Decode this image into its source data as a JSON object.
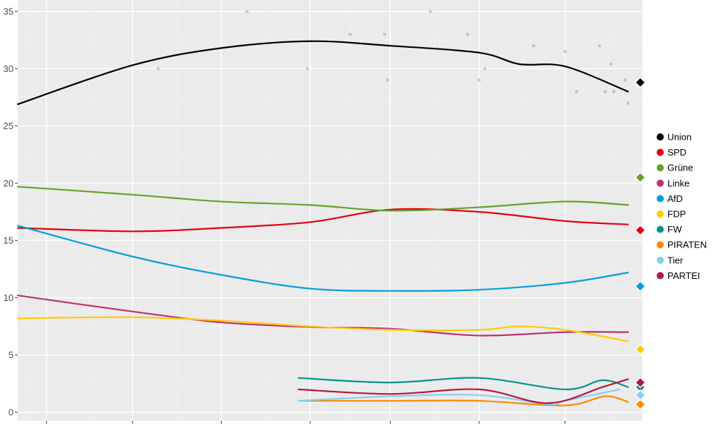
{
  "chart_data": {
    "type": "line",
    "title": "",
    "xlabel": "",
    "ylabel": "",
    "xlim": [
      "2018-10-22",
      "2019-05-28"
    ],
    "ylim": [
      0,
      36.5
    ],
    "grid": true,
    "legend_position": "right",
    "x_ticks": [
      "2018-11-01",
      "2018-12-01",
      "2019-01-01",
      "2019-02-01",
      "2019-03-01",
      "2019-04-01",
      "2019-05-01"
    ],
    "y_ticks": [
      "0",
      "5",
      "10",
      "15",
      "20",
      "25",
      "30",
      "35"
    ],
    "series": [
      {
        "name": "Union",
        "color": "#000000",
        "diamond": 28.8,
        "points": [
          [
            "2018-10-22",
            26.9
          ],
          [
            "2018-12-01",
            30.3
          ],
          [
            "2019-01-01",
            31.8
          ],
          [
            "2019-02-01",
            32.4
          ],
          [
            "2019-03-01",
            32.0
          ],
          [
            "2019-04-01",
            31.4
          ],
          [
            "2019-04-15",
            30.4
          ],
          [
            "2019-05-01",
            30.2
          ],
          [
            "2019-05-23",
            28.0
          ]
        ],
        "polls": [
          [
            "2018-12-10",
            30
          ],
          [
            "2019-01-10",
            35
          ],
          [
            "2019-01-31",
            30
          ],
          [
            "2019-02-15",
            33
          ],
          [
            "2019-02-27",
            33
          ],
          [
            "2019-02-28",
            29
          ],
          [
            "2019-03-15",
            35
          ],
          [
            "2019-03-28",
            33
          ],
          [
            "2019-04-01",
            29
          ],
          [
            "2019-04-03",
            30
          ],
          [
            "2019-04-20",
            32
          ],
          [
            "2019-05-01",
            31.5
          ],
          [
            "2019-05-05",
            28
          ],
          [
            "2019-05-13",
            32
          ],
          [
            "2019-05-15",
            28
          ],
          [
            "2019-05-17",
            30.4
          ],
          [
            "2019-05-18",
            28
          ],
          [
            "2019-05-22",
            29
          ],
          [
            "2019-05-23",
            27
          ]
        ]
      },
      {
        "name": "SPD",
        "color": "#e3000f",
        "diamond": 15.9,
        "points": [
          [
            "2018-10-22",
            16.1
          ],
          [
            "2018-12-01",
            15.8
          ],
          [
            "2019-01-01",
            16.1
          ],
          [
            "2019-02-01",
            16.6
          ],
          [
            "2019-03-01",
            17.7
          ],
          [
            "2019-04-01",
            17.5
          ],
          [
            "2019-05-01",
            16.7
          ],
          [
            "2019-05-23",
            16.4
          ]
        ]
      },
      {
        "name": "Grüne",
        "color": "#64a12d",
        "diamond": 20.5,
        "points": [
          [
            "2018-10-22",
            19.7
          ],
          [
            "2018-12-01",
            19.0
          ],
          [
            "2019-01-01",
            18.4
          ],
          [
            "2019-02-01",
            18.1
          ],
          [
            "2019-03-01",
            17.6
          ],
          [
            "2019-04-01",
            17.9
          ],
          [
            "2019-05-01",
            18.4
          ],
          [
            "2019-05-23",
            18.1
          ]
        ]
      },
      {
        "name": "Linke",
        "color": "#be3075",
        "diamond": null,
        "points": [
          [
            "2018-10-22",
            10.2
          ],
          [
            "2018-12-01",
            8.8
          ],
          [
            "2019-01-01",
            7.85
          ],
          [
            "2019-02-01",
            7.45
          ],
          [
            "2019-03-01",
            7.3
          ],
          [
            "2019-04-01",
            6.7
          ],
          [
            "2019-05-01",
            7.0
          ],
          [
            "2019-05-23",
            7.0
          ]
        ]
      },
      {
        "name": "AfD",
        "color": "#009ee0",
        "diamond": 11.0,
        "points": [
          [
            "2018-10-22",
            16.3
          ],
          [
            "2018-12-01",
            13.6
          ],
          [
            "2019-01-01",
            12.0
          ],
          [
            "2019-02-01",
            10.8
          ],
          [
            "2019-03-01",
            10.6
          ],
          [
            "2019-04-01",
            10.7
          ],
          [
            "2019-05-01",
            11.3
          ],
          [
            "2019-05-23",
            12.2
          ]
        ]
      },
      {
        "name": "FDP",
        "color": "#ffcc00",
        "diamond": 5.5,
        "points": [
          [
            "2018-10-22",
            8.2
          ],
          [
            "2018-12-01",
            8.3
          ],
          [
            "2019-01-01",
            8.0
          ],
          [
            "2019-02-01",
            7.5
          ],
          [
            "2019-03-01",
            7.2
          ],
          [
            "2019-04-01",
            7.2
          ],
          [
            "2019-04-15",
            7.5
          ],
          [
            "2019-05-01",
            7.2
          ],
          [
            "2019-05-23",
            6.2
          ]
        ]
      },
      {
        "name": "FW",
        "color": "#00948a",
        "diamond": 2.2,
        "points": [
          [
            "2019-01-28",
            3.0
          ],
          [
            "2019-03-01",
            2.6
          ],
          [
            "2019-04-01",
            3.0
          ],
          [
            "2019-05-01",
            2.0
          ],
          [
            "2019-05-14",
            2.8
          ],
          [
            "2019-05-23",
            2.2
          ]
        ]
      },
      {
        "name": "PIRATEN",
        "color": "#ff8800",
        "diamond": 0.7,
        "points": [
          [
            "2019-01-28",
            1.0
          ],
          [
            "2019-03-01",
            1.0
          ],
          [
            "2019-04-01",
            1.0
          ],
          [
            "2019-05-01",
            0.6
          ],
          [
            "2019-05-15",
            1.4
          ],
          [
            "2019-05-23",
            0.9
          ]
        ]
      },
      {
        "name": "Tier",
        "color": "#87cef0",
        "diamond": 1.5,
        "points": [
          [
            "2019-01-28",
            1.0
          ],
          [
            "2019-03-01",
            1.4
          ],
          [
            "2019-04-01",
            1.5
          ],
          [
            "2019-04-25",
            0.7
          ],
          [
            "2019-05-01",
            1.0
          ],
          [
            "2019-05-20",
            2.0
          ]
        ]
      },
      {
        "name": "PARTEI",
        "color": "#b5173f",
        "diamond": 2.6,
        "points": [
          [
            "2019-01-28",
            2.0
          ],
          [
            "2019-03-01",
            1.6
          ],
          [
            "2019-04-01",
            2.0
          ],
          [
            "2019-04-25",
            0.8
          ],
          [
            "2019-05-14",
            2.2
          ],
          [
            "2019-05-23",
            2.9
          ]
        ]
      }
    ]
  }
}
